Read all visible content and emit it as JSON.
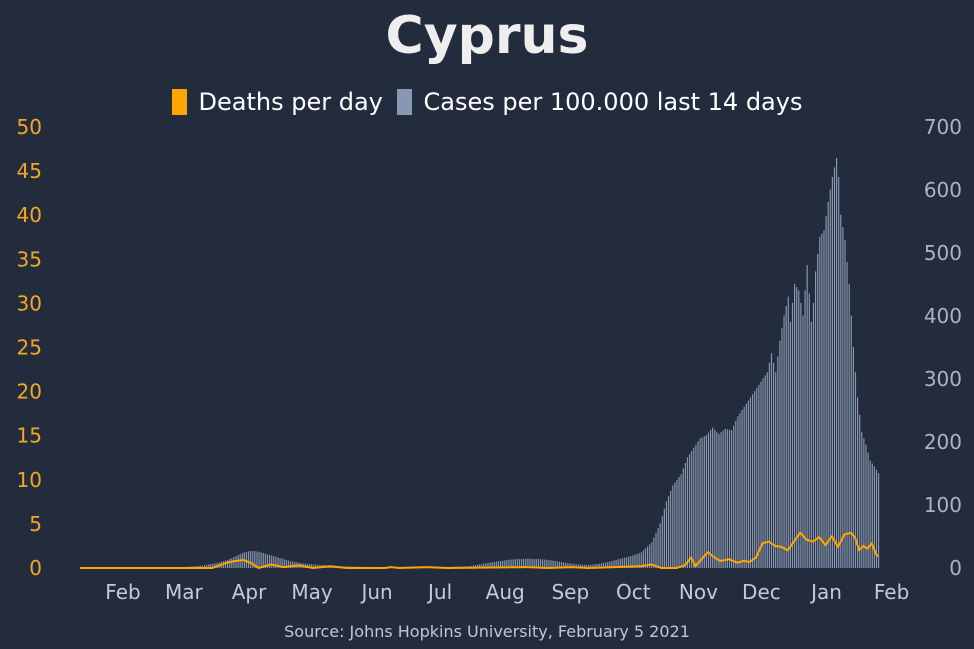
{
  "chart_data": {
    "type": "bar",
    "title": "Cyprus",
    "source": "Source: Johns Hopkins University, February 5 2021",
    "legend_placement": "top-center",
    "grid": false,
    "colors": {
      "deaths": "#ffa500",
      "cases": "#8898b0",
      "background": "#232c3d",
      "left_axis": "#f5a623",
      "right_axis": "#a9b4c6"
    },
    "legend": [
      {
        "key": "deaths",
        "label": "Deaths per day"
      },
      {
        "key": "cases",
        "label": "Cases per 100.000 last 14 days"
      }
    ],
    "x_range": [
      "2020-01-22",
      "2021-02-05"
    ],
    "x_ticks": [
      {
        "label": "Feb",
        "date": "2020-02-01"
      },
      {
        "label": "Mar",
        "date": "2020-03-01"
      },
      {
        "label": "Apr",
        "date": "2020-04-01"
      },
      {
        "label": "May",
        "date": "2020-05-01"
      },
      {
        "label": "Jun",
        "date": "2020-06-01"
      },
      {
        "label": "Jul",
        "date": "2020-07-01"
      },
      {
        "label": "Aug",
        "date": "2020-08-01"
      },
      {
        "label": "Sep",
        "date": "2020-09-01"
      },
      {
        "label": "Oct",
        "date": "2020-10-01"
      },
      {
        "label": "Nov",
        "date": "2020-11-01"
      },
      {
        "label": "Dec",
        "date": "2020-12-01"
      },
      {
        "label": "Jan",
        "date": "2021-01-01"
      },
      {
        "label": "Feb",
        "date": "2021-02-01"
      }
    ],
    "y_left": {
      "ylim": [
        0,
        50
      ],
      "ticks": [
        "0",
        "5",
        "10",
        "15",
        "20",
        "25",
        "30",
        "35",
        "40",
        "45",
        "50"
      ]
    },
    "y_right": {
      "ylim": [
        0,
        700
      ],
      "ticks": [
        "0",
        "100",
        "200",
        "300",
        "400",
        "500",
        "600",
        "700"
      ]
    },
    "series": [
      {
        "name": "Cases per 100.000 last 14 days",
        "type": "bar",
        "axis": "right",
        "points": [
          [
            "2020-01-22",
            0
          ],
          [
            "2020-03-01",
            0
          ],
          [
            "2020-03-10",
            0.5
          ],
          [
            "2020-03-20",
            3
          ],
          [
            "2020-03-28",
            8
          ],
          [
            "2020-04-01",
            12
          ],
          [
            "2020-04-05",
            18
          ],
          [
            "2020-04-08",
            23
          ],
          [
            "2020-04-11",
            26
          ],
          [
            "2020-04-14",
            26
          ],
          [
            "2020-04-17",
            24
          ],
          [
            "2020-04-20",
            21
          ],
          [
            "2020-04-25",
            16
          ],
          [
            "2020-05-01",
            10
          ],
          [
            "2020-05-08",
            6
          ],
          [
            "2020-05-15",
            4
          ],
          [
            "2020-05-25",
            2
          ],
          [
            "2020-06-05",
            1
          ],
          [
            "2020-06-20",
            0.5
          ],
          [
            "2020-07-10",
            0.5
          ],
          [
            "2020-07-25",
            2
          ],
          [
            "2020-08-01",
            6
          ],
          [
            "2020-08-08",
            10
          ],
          [
            "2020-08-15",
            13
          ],
          [
            "2020-08-22",
            14
          ],
          [
            "2020-08-29",
            13
          ],
          [
            "2020-09-03",
            11
          ],
          [
            "2020-09-08",
            8
          ],
          [
            "2020-09-14",
            5
          ],
          [
            "2020-09-20",
            4
          ],
          [
            "2020-09-25",
            6
          ],
          [
            "2020-10-01",
            10
          ],
          [
            "2020-10-05",
            14
          ],
          [
            "2020-10-10",
            18
          ],
          [
            "2020-10-15",
            24
          ],
          [
            "2020-10-20",
            40
          ],
          [
            "2020-10-24",
            70
          ],
          [
            "2020-10-27",
            105
          ],
          [
            "2020-10-30",
            130
          ],
          [
            "2020-11-03",
            148
          ],
          [
            "2020-11-06",
            175
          ],
          [
            "2020-11-09",
            190
          ],
          [
            "2020-11-12",
            205
          ],
          [
            "2020-11-15",
            210
          ],
          [
            "2020-11-18",
            222
          ],
          [
            "2020-11-21",
            212
          ],
          [
            "2020-11-24",
            220
          ],
          [
            "2020-11-27",
            218
          ],
          [
            "2020-11-30",
            240
          ],
          [
            "2020-12-03",
            255
          ],
          [
            "2020-12-06",
            270
          ],
          [
            "2020-12-09",
            285
          ],
          [
            "2020-12-12",
            300
          ],
          [
            "2020-12-14",
            310
          ],
          [
            "2020-12-16",
            340
          ],
          [
            "2020-12-18",
            310
          ],
          [
            "2020-12-20",
            360
          ],
          [
            "2020-12-22",
            400
          ],
          [
            "2020-12-24",
            430
          ],
          [
            "2020-12-25",
            390
          ],
          [
            "2020-12-27",
            450
          ],
          [
            "2020-12-29",
            440
          ],
          [
            "2020-12-31",
            400
          ],
          [
            "2021-01-02",
            480
          ],
          [
            "2021-01-04",
            390
          ],
          [
            "2021-01-05",
            420
          ],
          [
            "2021-01-06",
            470
          ],
          [
            "2021-01-08",
            525
          ],
          [
            "2021-01-10",
            535
          ],
          [
            "2021-01-12",
            580
          ],
          [
            "2021-01-14",
            620
          ],
          [
            "2021-01-16",
            650
          ],
          [
            "2021-01-17",
            620
          ],
          [
            "2021-01-18",
            560
          ],
          [
            "2021-01-20",
            520
          ],
          [
            "2021-01-22",
            450
          ],
          [
            "2021-01-24",
            350
          ],
          [
            "2021-01-26",
            270
          ],
          [
            "2021-01-28",
            215
          ],
          [
            "2021-01-30",
            195
          ],
          [
            "2021-02-01",
            170
          ],
          [
            "2021-02-03",
            160
          ],
          [
            "2021-02-05",
            150
          ]
        ]
      },
      {
        "name": "Deaths per day",
        "type": "line",
        "axis": "left",
        "points": [
          [
            "2020-01-22",
            0
          ],
          [
            "2020-03-25",
            0
          ],
          [
            "2020-04-01",
            0.6
          ],
          [
            "2020-04-05",
            0.8
          ],
          [
            "2020-04-09",
            0.9
          ],
          [
            "2020-04-13",
            0.5
          ],
          [
            "2020-04-16",
            0
          ],
          [
            "2020-04-22",
            0.4
          ],
          [
            "2020-04-28",
            0.1
          ],
          [
            "2020-05-05",
            0.3
          ],
          [
            "2020-05-12",
            0
          ],
          [
            "2020-05-20",
            0.2
          ],
          [
            "2020-05-28",
            0
          ],
          [
            "2020-06-15",
            0
          ],
          [
            "2020-06-18",
            0.1
          ],
          [
            "2020-06-22",
            0
          ],
          [
            "2020-07-05",
            0.1
          ],
          [
            "2020-07-15",
            0
          ],
          [
            "2020-08-22",
            0.1
          ],
          [
            "2020-09-01",
            0
          ],
          [
            "2020-09-12",
            0.1
          ],
          [
            "2020-09-20",
            0
          ],
          [
            "2020-10-15",
            0.2
          ],
          [
            "2020-10-20",
            0.4
          ],
          [
            "2020-10-25",
            0
          ],
          [
            "2020-11-01",
            0
          ],
          [
            "2020-11-05",
            0.3
          ],
          [
            "2020-11-08",
            1.2
          ],
          [
            "2020-11-10",
            0.2
          ],
          [
            "2020-11-13",
            1.0
          ],
          [
            "2020-11-16",
            1.8
          ],
          [
            "2020-11-19",
            1.2
          ],
          [
            "2020-11-22",
            0.8
          ],
          [
            "2020-11-26",
            1.0
          ],
          [
            "2020-11-30",
            0.6
          ],
          [
            "2020-12-03",
            0.8
          ],
          [
            "2020-12-06",
            0.7
          ],
          [
            "2020-12-09",
            1.2
          ],
          [
            "2020-12-12",
            2.8
          ],
          [
            "2020-12-15",
            3.0
          ],
          [
            "2020-12-18",
            2.5
          ],
          [
            "2020-12-21",
            2.4
          ],
          [
            "2020-12-24",
            2.0
          ],
          [
            "2020-12-27",
            3.0
          ],
          [
            "2020-12-30",
            4.0
          ],
          [
            "2021-01-02",
            3.2
          ],
          [
            "2021-01-05",
            3.0
          ],
          [
            "2021-01-08",
            3.5
          ],
          [
            "2021-01-11",
            2.6
          ],
          [
            "2021-01-14",
            3.6
          ],
          [
            "2021-01-17",
            2.4
          ],
          [
            "2021-01-20",
            3.8
          ],
          [
            "2021-01-23",
            4.0
          ],
          [
            "2021-01-25",
            3.5
          ],
          [
            "2021-01-27",
            2.0
          ],
          [
            "2021-01-29",
            2.5
          ],
          [
            "2021-01-31",
            2.2
          ],
          [
            "2021-02-02",
            2.8
          ],
          [
            "2021-02-04",
            1.6
          ],
          [
            "2021-02-05",
            1.3
          ]
        ]
      }
    ]
  }
}
